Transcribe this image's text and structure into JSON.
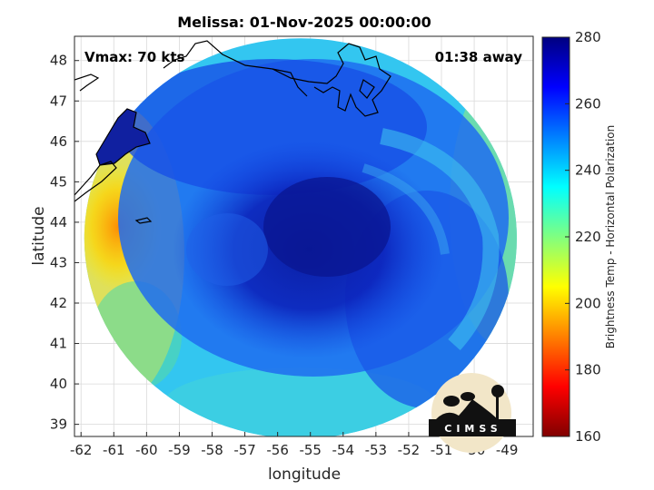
{
  "chart_data": {
    "type": "heatmap",
    "title": "Melissa: 01-Nov-2025 00:00:00",
    "xlabel": "longitude",
    "ylabel": "latitude",
    "xlim": [
      -62.2,
      -48.2
    ],
    "ylim": [
      38.7,
      48.6
    ],
    "xticks": [
      -62,
      -61,
      -60,
      -59,
      -58,
      -57,
      -56,
      -55,
      -54,
      -53,
      -52,
      -51,
      -50,
      -49
    ],
    "yticks": [
      39,
      40,
      41,
      42,
      43,
      44,
      45,
      46,
      47,
      48
    ],
    "grid": true,
    "annotations": {
      "vmax": "Vmax: 70 kts",
      "time_away": "01:38 away"
    },
    "storm_center": {
      "lon": -55.2,
      "lat": 43.4
    },
    "swath": {
      "center_lon": -55.3,
      "center_lat": 43.6,
      "radius_lon": 6.6,
      "radius_lat": 4.95
    },
    "colorbar": {
      "label": "Brightness Temp - Horizontal Polarization",
      "range": [
        160,
        280
      ],
      "ticks": [
        160,
        180,
        200,
        220,
        240,
        260,
        280
      ],
      "colormap": [
        "#800000",
        "#ff0000",
        "#ff8000",
        "#ffff00",
        "#80ff80",
        "#00ffff",
        "#0080ff",
        "#0000ff",
        "#000080"
      ]
    }
  },
  "logo": {
    "text": "CIMSS"
  }
}
